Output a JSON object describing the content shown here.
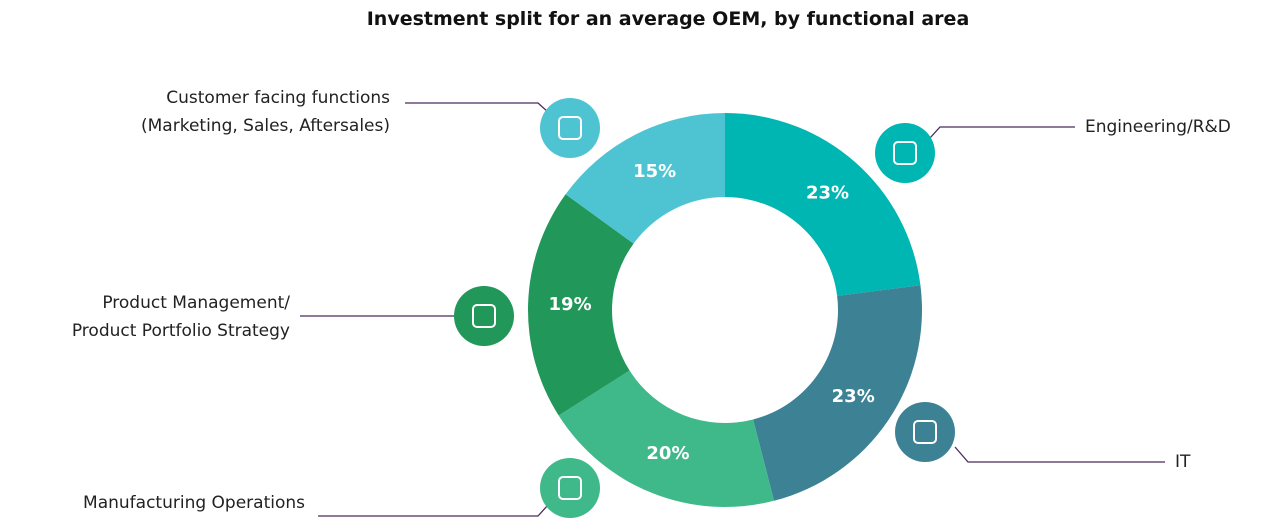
{
  "chart_data": {
    "type": "donut",
    "title": "Investment split for an average OEM, by functional area",
    "categories": [
      "Engineering/R&D",
      "IT",
      "Manufacturing Operations",
      "Product Management/\nProduct Portfolio Strategy",
      "Customer facing functions\n(Marketing, Sales, Aftersales)"
    ],
    "values": [
      23,
      23,
      20,
      19,
      15
    ],
    "value_labels": [
      "23%",
      "23%",
      "20%",
      "19%",
      "15%"
    ],
    "colors": [
      "#00b6b2",
      "#3d8194",
      "#3fb98a",
      "#21975a",
      "#4ec4d2"
    ]
  }
}
